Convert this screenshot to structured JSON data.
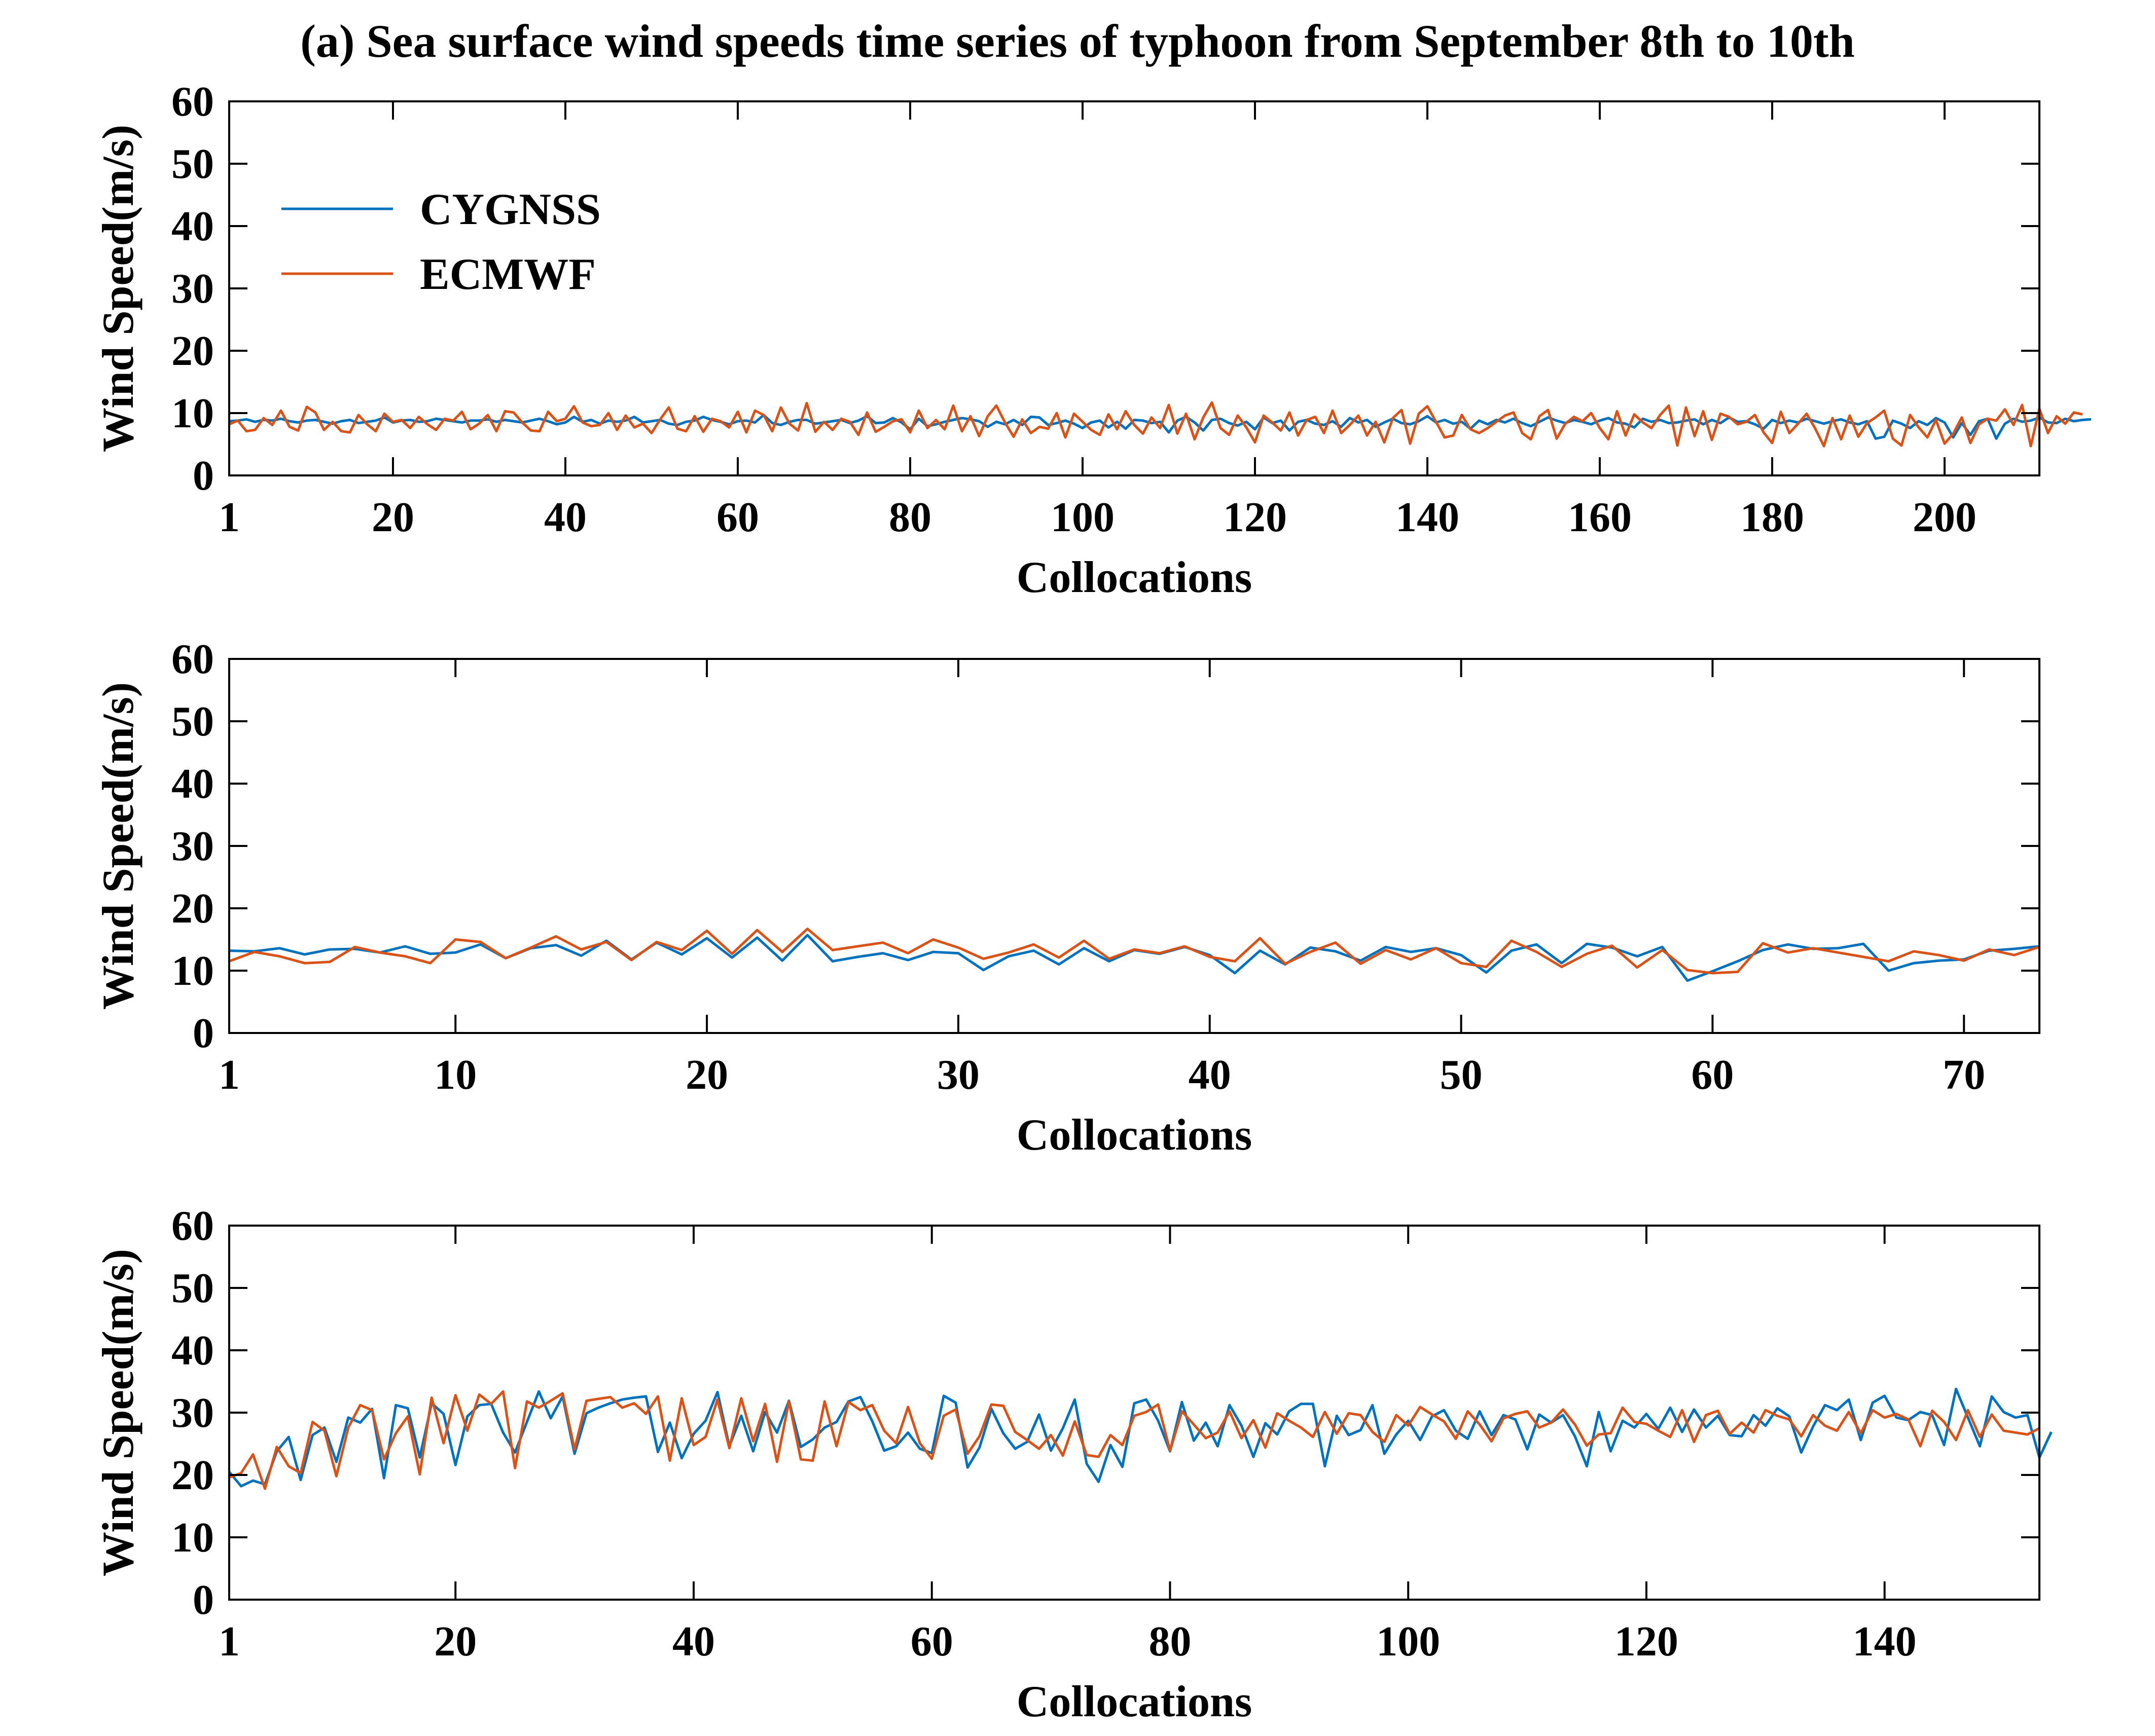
{
  "figure_title": "(a) Sea surface wind speeds time series of typhoon from September 8th to 10th",
  "legend": [
    {
      "name": "CYGNSS",
      "color": "#0072BD"
    },
    {
      "name": "ECMWF",
      "color": "#D95319"
    }
  ],
  "chart_data": [
    {
      "type": "line",
      "title": "(a) Sea surface wind speeds time series of typhoon from September 8th to 10th",
      "xlabel": "Collocations",
      "ylabel": "Wind Speed(m/s)",
      "xlim": [
        1,
        211
      ],
      "ylim": [
        0,
        60
      ],
      "xticks": [
        1,
        20,
        40,
        60,
        80,
        100,
        120,
        140,
        160,
        180,
        200
      ],
      "yticks": [
        0,
        10,
        20,
        30,
        40,
        50,
        60
      ],
      "legend_position": "top-left",
      "series": [
        {
          "name": "CYGNSS",
          "color": "#0072BD",
          "values": [
            8.7,
            8.8,
            9,
            8.6,
            8.9,
            8.8,
            9.1,
            8.7,
            8.5,
            8.8,
            8.9,
            8.6,
            8.3,
            8.7,
            8.9,
            8.4,
            8.6,
            8.8,
            9.3,
            8.5,
            8.8,
            8.9,
            8.6,
            8.7,
            9.1,
            8.9,
            8.7,
            8.5,
            8.8,
            8.8,
            9,
            8.6,
            8.9,
            8.7,
            8.5,
            8.8,
            9.1,
            8.7,
            8.2,
            8.5,
            9.4,
            8.6,
            8.9,
            8.3,
            8.8,
            8.6,
            8.8,
            9.4,
            8.5,
            8.7,
            8.9,
            8.3,
            8.1,
            8.6,
            8.8,
            9.4,
            8.9,
            8.6,
            8.2,
            8.7,
            8.8,
            8.5,
            9.7,
            8.4,
            8.1,
            8.6,
            8.9,
            8.9,
            8.3,
            8.5,
            8.7,
            8.9,
            8.4,
            8.8,
            9.5,
            8.4,
            8.5,
            9.2,
            8.5,
            7.4,
            9.1,
            7.9,
            8.2,
            8.6,
            8.9,
            9.2,
            9,
            8.7,
            7.8,
            8.6,
            8.2,
            8.9,
            8.1,
            9.4,
            9.3,
            8.1,
            8.4,
            8.8,
            8.3,
            7.6,
            8.5,
            8.8,
            7.7,
            8.6,
            7.5,
            8.9,
            8.8,
            8.4,
            8.6,
            6.9,
            8.8,
            9.4,
            8.5,
            7.2,
            8.9,
            9.1,
            8.4,
            8,
            8.6,
            7.4,
            9.3,
            8.4,
            8.8,
            7.2,
            8.6,
            8.9,
            8.3,
            8.1,
            8.7,
            7.8,
            9.2,
            8.5,
            8.9,
            7.8,
            8.5,
            9.1,
            8.4,
            8.2,
            8.7,
            9.5,
            8.5,
            8.9,
            8.3,
            8.6,
            7.5,
            8.8,
            8.2,
            8.9,
            8.5,
            9.1,
            8.4,
            7.9,
            8.6,
            9.3,
            8.8,
            8.4,
            8.9,
            8.6,
            8.2,
            8.8,
            9.2,
            8.5,
            8.3,
            7.7,
            9.1,
            8.6,
            8.9,
            8.4,
            8.5,
            8.8,
            9,
            8.2,
            8.9,
            8.4,
            9.3,
            8.6,
            8.7,
            8.2,
            7.5,
            8.9,
            8.4,
            8.8,
            8.5,
            9.1,
            8.7,
            8.3,
            8.7,
            9,
            8.5,
            8.2,
            8.7,
            5.9,
            6.2,
            8.8,
            8.3,
            7.6,
            8.7,
            8.1,
            9.2,
            8.5,
            6.1,
            8.4,
            6.5,
            8.7,
            9.1,
            5.9,
            8.3,
            9.1,
            8.6,
            8.8,
            9.3,
            8.5,
            8.4,
            9.1,
            8.7,
            8.9,
            9
          ]
        },
        {
          "name": "ECMWF",
          "color": "#D95319",
          "values": [
            8.2,
            8.8,
            7.1,
            7.3,
            9.2,
            8.1,
            10.4,
            7.8,
            7.2,
            11,
            10.1,
            7.3,
            8.6,
            7.1,
            6.9,
            9.7,
            8.2,
            7.1,
            9.9,
            8.6,
            8.9,
            7.6,
            9.4,
            8.2,
            7.3,
            9.1,
            8.8,
            10.2,
            7.4,
            8.3,
            9.7,
            7.1,
            10.3,
            10.1,
            8.5,
            7.2,
            7.1,
            10.2,
            8.7,
            9.1,
            11.1,
            8.5,
            7.9,
            8.1,
            10,
            7.3,
            9.6,
            7.7,
            8.3,
            6.8,
            9,
            10.9,
            7.5,
            7.1,
            9.5,
            7,
            9.1,
            8.7,
            7.7,
            10.2,
            6.9,
            10.4,
            9.7,
            7.1,
            10.9,
            8.3,
            7.2,
            11.6,
            7,
            8.6,
            7.3,
            9.1,
            8.6,
            6.5,
            10.1,
            7,
            7.8,
            8.7,
            9,
            6.9,
            10.4,
            7.6,
            8.9,
            7.4,
            11.2,
            7.1,
            9.5,
            6.3,
            9.5,
            11.2,
            8.5,
            6.2,
            9,
            6.8,
            7.8,
            7.5,
            10,
            6.1,
            9.9,
            8.6,
            7.3,
            6.5,
            9.8,
            7.4,
            10.3,
            8.1,
            6.7,
            9.3,
            7.6,
            11.3,
            6.7,
            9.9,
            5.8,
            9.3,
            11.7,
            7.6,
            6.5,
            9.6,
            7.7,
            5.3,
            9.6,
            8.5,
            7.2,
            10.1,
            6.4,
            8.9,
            9.4,
            6.8,
            10.4,
            6.8,
            8.1,
            9.6,
            6.4,
            8.6,
            5.3,
            9.2,
            10.5,
            5.1,
            9.9,
            11.1,
            8.6,
            6.1,
            6.4,
            9.7,
            7.4,
            6.8,
            7.6,
            8.6,
            9.6,
            10.1,
            6.8,
            5.8,
            9.5,
            10.5,
            5.9,
            8.3,
            9.4,
            8.7,
            10,
            7.6,
            5.8,
            10.3,
            6.4,
            9.8,
            8.5,
            7.6,
            9.7,
            11.2,
            4.8,
            10.9,
            6.3,
            10.3,
            5.7,
            9.9,
            9.4,
            8.2,
            8.6,
            9.7,
            6.9,
            5.2,
            10.2,
            6.8,
            8.3,
            9.9,
            7.5,
            4.7,
            9.2,
            5.8,
            9.6,
            6.2,
            8.4,
            9.3,
            10.4,
            5.9,
            4.8,
            9.7,
            7.7,
            6.1,
            8.9,
            5.1,
            6.7,
            9.3,
            5.2,
            8.2,
            9.1,
            8.8,
            10.6,
            8.1,
            11.3,
            4.7,
            10.7,
            6.8,
            9.5,
            8.3,
            10.1,
            9.8
          ]
        }
      ]
    },
    {
      "type": "line",
      "title": "",
      "xlabel": "Collocations",
      "ylabel": "Wind Speed(m/s)",
      "xlim": [
        1,
        73
      ],
      "ylim": [
        0,
        60
      ],
      "xticks": [
        1,
        10,
        20,
        30,
        40,
        50,
        60,
        70
      ],
      "yticks": [
        0,
        10,
        20,
        30,
        40,
        50,
        60
      ],
      "series": [
        {
          "name": "CYGNSS",
          "color": "#0072BD",
          "values": [
            13.2,
            13.1,
            13.6,
            12.6,
            13.4,
            13.5,
            12.9,
            13.9,
            12.7,
            12.9,
            14.2,
            12,
            13.6,
            14.1,
            12.4,
            14.8,
            11.8,
            14.5,
            12.6,
            15.2,
            12.1,
            15.3,
            11.6,
            15.7,
            11.5,
            12.2,
            12.8,
            11.7,
            13,
            12.8,
            10.1,
            12.3,
            13.2,
            11,
            13.6,
            11.5,
            13.3,
            12.7,
            13.8,
            12.5,
            9.6,
            13.2,
            11,
            13.7,
            13.1,
            11.6,
            13.8,
            13,
            13.6,
            12.5,
            9.7,
            13.2,
            14.2,
            11.2,
            14.3,
            13.7,
            12.3,
            13.8,
            8.4,
            9.9,
            11.5,
            13.3,
            14.2,
            13.5,
            13.6,
            14.3,
            10,
            11.2,
            11.6,
            11.8,
            13.2,
            13.5,
            13.9
          ]
        },
        {
          "name": "ECMWF",
          "color": "#D95319",
          "values": [
            11.5,
            13,
            12.3,
            11.2,
            11.4,
            13.8,
            12.9,
            12.3,
            11.2,
            15,
            14.6,
            12,
            13.7,
            15.5,
            13.4,
            14.6,
            11.7,
            14.6,
            13.3,
            16.4,
            12.7,
            16.5,
            13,
            16.7,
            13.3,
            13.9,
            14.5,
            12.8,
            15,
            13.7,
            11.9,
            12.9,
            14.2,
            12.1,
            14.8,
            11.9,
            13.4,
            12.8,
            13.9,
            12.2,
            11.5,
            15.2,
            11.1,
            13,
            14.5,
            11.1,
            13.3,
            11.8,
            13.6,
            11.2,
            10.6,
            14.8,
            13,
            10.6,
            12.7,
            14,
            10.5,
            13.3,
            10.1,
            9.6,
            9.8,
            14.4,
            12.9,
            13.6,
            12.9,
            12.2,
            11.5,
            13.1,
            12.5,
            11.6,
            13.4,
            12.5,
            13.8
          ]
        }
      ]
    },
    {
      "type": "line",
      "title": "",
      "xlabel": "Collocations",
      "ylabel": "Wind Speed(m/s)",
      "xlim": [
        1,
        153
      ],
      "ylim": [
        0,
        60
      ],
      "xticks": [
        1,
        20,
        40,
        60,
        80,
        100,
        120,
        140
      ],
      "yticks": [
        0,
        10,
        20,
        30,
        40,
        50,
        60
      ],
      "series": [
        {
          "name": "CYGNSS",
          "color": "#0072BD",
          "values": [
            20.5,
            18.2,
            19.1,
            18.5,
            23.8,
            26.1,
            19.2,
            26.4,
            27.6,
            22.1,
            29.2,
            28.4,
            30.6,
            19.5,
            31.2,
            30.7,
            22.8,
            31.5,
            29.8,
            21.6,
            29.4,
            31.2,
            31.4,
            26.8,
            23.6,
            28.5,
            33.4,
            29.1,
            32.6,
            23.4,
            29.9,
            30.8,
            31.5,
            32.1,
            32.4,
            32.6,
            23.7,
            28.4,
            22.7,
            26.6,
            28.7,
            33.3,
            24.6,
            29.5,
            23.8,
            30.1,
            26.8,
            31.9,
            24.5,
            25.7,
            27.6,
            28.5,
            31.8,
            32.5,
            28.6,
            23.9,
            24.6,
            26.8,
            24.2,
            23.5,
            32.7,
            31.6,
            21.2,
            24.4,
            30.6,
            26.7,
            24.2,
            25.3,
            29.7,
            23.9,
            27.5,
            32.1,
            21.8,
            18.9,
            24.8,
            21.3,
            31.5,
            32.1,
            28.7,
            23.8,
            31.7,
            25.5,
            28.4,
            24.6,
            31.2,
            27.9,
            22.9,
            28.3,
            26.5,
            30.2,
            31.4,
            31.4,
            21.4,
            29.5,
            26.4,
            27.2,
            31.2,
            23.4,
            26.5,
            28.7,
            25.6,
            29.4,
            30.4,
            27.1,
            25.8,
            30.2,
            26.4,
            29.6,
            28.9,
            24.1,
            29.7,
            28.4,
            29.6,
            26.2,
            21.4,
            30.1,
            23.8,
            28.7,
            27.6,
            29.8,
            27.4,
            30.8,
            26.9,
            30.5,
            27.6,
            29.5,
            26.4,
            26.2,
            29.6,
            27.9,
            30.7,
            29.4,
            23.6,
            27.8,
            31.2,
            30.4,
            32.1,
            25.6,
            31.6,
            32.7,
            29.2,
            28.8,
            30.1,
            29.6,
            24.8,
            33.8,
            29.2,
            24.6,
            32.6,
            30.1,
            29.2,
            29.6,
            22.8,
            26.9
          ]
        },
        {
          "name": "ECMWF",
          "color": "#D95319",
          "values": [
            19.6,
            20.3,
            23.3,
            17.8,
            24.5,
            21.4,
            20.3,
            28.5,
            27.1,
            19.8,
            27.6,
            31.2,
            30.4,
            22.5,
            26.7,
            29.4,
            20.1,
            32.4,
            25.1,
            32.8,
            27.1,
            32.9,
            31.4,
            33.4,
            21.1,
            31.8,
            30.8,
            31.9,
            33.1,
            24.1,
            31.9,
            32.2,
            32.5,
            30.8,
            31.5,
            29.8,
            32.6,
            22.3,
            32.3,
            24.8,
            26.1,
            32.1,
            24.3,
            32.3,
            25.4,
            31.4,
            22.1,
            31.8,
            22.5,
            22.3,
            31.8,
            24.6,
            31.7,
            30.4,
            31.2,
            27.1,
            25.1,
            30.9,
            25.1,
            22.6,
            29.5,
            30.5,
            23.4,
            26.2,
            31.3,
            31.1,
            26.9,
            25.6,
            24.2,
            26.4,
            23.1,
            28.6,
            23.2,
            22.9,
            26.4,
            24.8,
            29.5,
            30.1,
            31.3,
            23.9,
            30.2,
            28.1,
            25.9,
            26.8,
            30.2,
            25.9,
            28.8,
            24.4,
            29.9,
            28.7,
            27.6,
            26.1,
            30.1,
            26.6,
            29.9,
            29.6,
            26.9,
            25.3,
            29.6,
            27.9,
            30.9,
            29.7,
            28.6,
            25.8,
            30.2,
            28.1,
            25.4,
            29.1,
            29.8,
            30.2,
            27.6,
            28.4,
            30.5,
            28.1,
            24.7,
            26.5,
            26.7,
            30.8,
            28.5,
            28.2,
            27.1,
            26.1,
            30.4,
            25.3,
            29.6,
            30.3,
            26.6,
            28.4,
            26.8,
            30.4,
            29.5,
            28.9,
            26.2,
            29.6,
            27.9,
            27.1,
            30.1,
            26.7,
            30.4,
            29.2,
            29.8,
            28.9,
            24.6,
            30.3,
            28.5,
            25.6,
            30.4,
            26.1,
            29.7,
            27.1,
            26.8,
            26.5,
            27.5
          ]
        }
      ]
    }
  ]
}
